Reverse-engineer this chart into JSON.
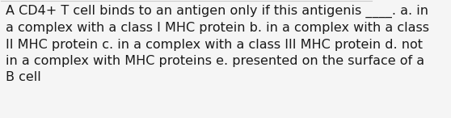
{
  "text": "A CD4+ T cell binds to an antigen only if this antigenis ____. a. in\na complex with a class I MHC protein b. in a complex with a class\nII MHC protein c. in a complex with a class III MHC protein d. not\nin a complex with MHC proteins e. presented on the surface of a\nB cell",
  "background_color": "#f5f5f5",
  "text_color": "#1a1a1a",
  "font_size": 11.5,
  "fig_width": 5.58,
  "fig_height": 1.46,
  "dpi": 100,
  "border_color": "#cccccc",
  "border_linewidth": 0.8
}
